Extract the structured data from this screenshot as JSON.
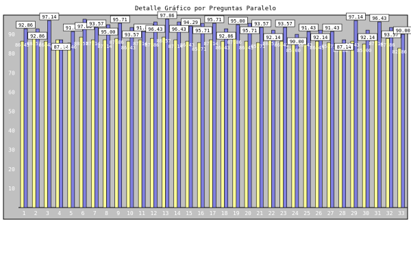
{
  "chart_data": {
    "type": "bar",
    "title": "Detalle Gráfico por Preguntas Paralelo",
    "xlabel": "",
    "ylabel": "",
    "ylim": [
      0,
      100
    ],
    "yticks": [
      10,
      20,
      30,
      40,
      50,
      60,
      70,
      80,
      90
    ],
    "grid": false,
    "legend": "none",
    "categories": [
      "1",
      "2",
      "3",
      "4",
      "5",
      "6",
      "7",
      "8",
      "9",
      "10",
      "11",
      "12",
      "13",
      "14",
      "15",
      "16",
      "17",
      "18",
      "19",
      "20",
      "21",
      "22",
      "23",
      "24",
      "25",
      "26",
      "27",
      "28",
      "29",
      "30",
      "31",
      "32",
      "33"
    ],
    "series": [
      {
        "color": "#ffff99",
        "values": [
          86.43,
          88.57,
          86.43,
          87.14,
          85.46,
          88.57,
          87.14,
          87.14,
          87.86,
          86.43,
          87.14,
          87.86,
          88.57,
          87.14,
          86.43,
          85.71,
          87.14,
          86.43,
          87.86,
          86.43,
          85.71,
          88.57,
          86.43,
          85.0,
          86.43,
          86.43,
          85.71,
          85.0,
          86.43,
          85.0,
          87.14,
          87.86,
          82.86
        ]
      },
      {
        "color": "#8080e0",
        "values": [
          92.86,
          92.86,
          97.14,
          87.14,
          91.43,
          97.86,
          93.57,
          95.0,
          95.71,
          93.57,
          91.43,
          96.43,
          97.86,
          96.43,
          94.29,
          95.71,
          95.71,
          92.86,
          95.0,
          95.71,
          93.57,
          92.14,
          93.57,
          90.0,
          91.43,
          92.14,
          91.43,
          87.14,
          97.14,
          92.14,
          96.43,
          93.57,
          90.0
        ]
      }
    ]
  }
}
